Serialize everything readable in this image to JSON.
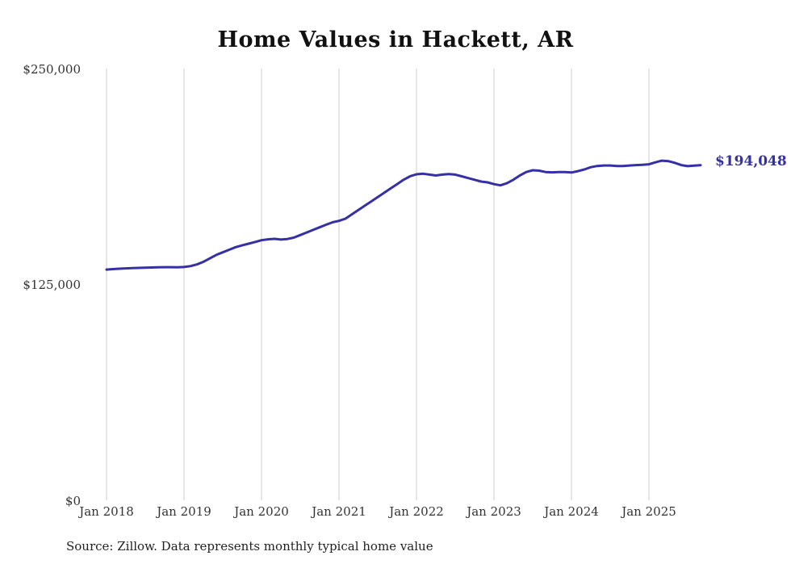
{
  "chart_data": {
    "type": "line",
    "title": "Home Values in Hackett, AR",
    "xlabel": "",
    "ylabel": "",
    "ylim": [
      0,
      250000
    ],
    "grid": "vertical-gridlines-only",
    "legend_position": "none",
    "x_start_month": "2018-01",
    "x_end_month": "2025-09",
    "x_ticks": [
      "Jan 2018",
      "Jan 2019",
      "Jan 2020",
      "Jan 2021",
      "Jan 2022",
      "Jan 2023",
      "Jan 2024",
      "Jan 2025"
    ],
    "y_ticks": [
      "$0",
      "$125,000",
      "$250,000"
    ],
    "series": [
      {
        "name": "Monthly typical home value",
        "values": [
          133600,
          133900,
          134100,
          134300,
          134500,
          134600,
          134700,
          134800,
          134900,
          135000,
          135000,
          134900,
          135100,
          135600,
          136600,
          138100,
          140100,
          142100,
          143600,
          145100,
          146600,
          147600,
          148600,
          149600,
          150600,
          151100,
          151400,
          151000,
          151300,
          152100,
          153600,
          155100,
          156600,
          158100,
          159600,
          161000,
          161800,
          163100,
          165600,
          168100,
          170600,
          173100,
          175600,
          178100,
          180600,
          183100,
          185600,
          187600,
          188800,
          189100,
          188600,
          188100,
          188600,
          188900,
          188600,
          187600,
          186600,
          185600,
          184600,
          184100,
          183100,
          182400,
          183600,
          185600,
          188100,
          190100,
          191100,
          190900,
          190100,
          189900,
          190100,
          190100,
          189800,
          190600,
          191600,
          192900,
          193600,
          193900,
          193900,
          193600,
          193600,
          193900,
          194100,
          194300,
          194600,
          195700,
          196700,
          196400,
          195400,
          194100,
          193500,
          193800,
          194048
        ]
      }
    ],
    "latest_value": 194048,
    "end_label": "$194,048",
    "line_color": "#3530a3",
    "grid_color": "#cccccc",
    "source": "Source: Zillow. Data represents monthly typical home value"
  }
}
